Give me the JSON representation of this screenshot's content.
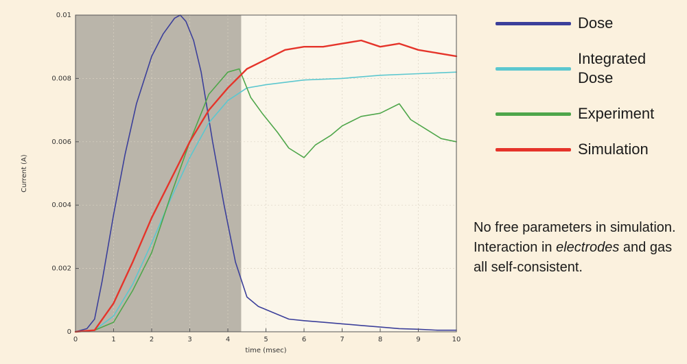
{
  "chart_data": {
    "type": "line",
    "title": "",
    "xlabel": "time (msec)",
    "ylabel": "Current (A)",
    "xlim": [
      0,
      10
    ],
    "ylim": [
      0,
      0.01
    ],
    "xticks": [
      "0",
      "1",
      "2",
      "3",
      "4",
      "5",
      "6",
      "7",
      "8",
      "9",
      "10"
    ],
    "yticks": [
      "0",
      "0.002",
      "0.004",
      "0.006",
      "0.008",
      "0.01"
    ],
    "shaded_region": [
      0,
      4.35
    ],
    "grid": true,
    "legend_placement": "right",
    "series": [
      {
        "name": "Dose",
        "color": "#3b3f9a",
        "x": [
          0,
          0.3,
          0.5,
          0.7,
          1.0,
          1.3,
          1.6,
          2.0,
          2.3,
          2.6,
          2.75,
          2.9,
          3.1,
          3.3,
          3.6,
          3.9,
          4.2,
          4.5,
          4.8,
          5.2,
          5.6,
          6.0,
          6.5,
          7.0,
          7.5,
          8.0,
          8.5,
          9.0,
          9.5,
          10.0
        ],
        "values": [
          0,
          0.0001,
          0.0004,
          0.0016,
          0.0037,
          0.0056,
          0.0072,
          0.0087,
          0.0094,
          0.0099,
          0.01,
          0.0098,
          0.0092,
          0.0082,
          0.006,
          0.004,
          0.0022,
          0.0011,
          0.0008,
          0.0006,
          0.0004,
          0.00035,
          0.0003,
          0.00025,
          0.0002,
          0.00015,
          0.0001,
          8e-05,
          5e-05,
          5e-05
        ]
      },
      {
        "name": "Integrated Dose",
        "color": "#5bc7cf",
        "x": [
          0,
          0.5,
          1.0,
          1.5,
          2.0,
          2.5,
          3.0,
          3.5,
          4.0,
          4.5,
          5.0,
          6.0,
          7.0,
          8.0,
          9.0,
          10.0
        ],
        "values": [
          0,
          5e-05,
          0.0005,
          0.0015,
          0.0028,
          0.0042,
          0.0055,
          0.0066,
          0.0073,
          0.0077,
          0.0078,
          0.00795,
          0.008,
          0.0081,
          0.00815,
          0.0082
        ]
      },
      {
        "name": "Experiment",
        "color": "#4ea64a",
        "x": [
          0,
          0.5,
          1.0,
          1.5,
          2.0,
          2.5,
          3.0,
          3.5,
          4.0,
          4.3,
          4.6,
          4.9,
          5.3,
          5.6,
          6.0,
          6.3,
          6.7,
          7.0,
          7.5,
          8.0,
          8.5,
          8.8,
          9.2,
          9.6,
          10.0
        ],
        "values": [
          0,
          5e-05,
          0.0003,
          0.0013,
          0.0025,
          0.0043,
          0.006,
          0.0075,
          0.0082,
          0.0083,
          0.0074,
          0.0069,
          0.0063,
          0.0058,
          0.0055,
          0.0059,
          0.0062,
          0.0065,
          0.0068,
          0.0069,
          0.0072,
          0.0067,
          0.0064,
          0.0061,
          0.006
        ]
      },
      {
        "name": "Simulation",
        "color": "#e5342a",
        "x": [
          0,
          0.5,
          1.0,
          1.5,
          2.0,
          2.5,
          3.0,
          3.5,
          4.0,
          4.5,
          5.0,
          5.5,
          6.0,
          6.5,
          7.0,
          7.5,
          8.0,
          8.5,
          9.0,
          9.5,
          10.0
        ],
        "values": [
          0,
          5e-05,
          0.0009,
          0.0022,
          0.0036,
          0.0048,
          0.006,
          0.007,
          0.0077,
          0.0083,
          0.0086,
          0.0089,
          0.009,
          0.009,
          0.0091,
          0.0092,
          0.009,
          0.0091,
          0.0089,
          0.0088,
          0.0087
        ]
      }
    ]
  },
  "legend": [
    {
      "label": "Dose",
      "color": "#3b3f9a"
    },
    {
      "label": "Integrated Dose",
      "color": "#5bc7cf"
    },
    {
      "label": "Experiment",
      "color": "#4ea64a"
    },
    {
      "label": "Simulation",
      "color": "#e5342a"
    }
  ],
  "note": {
    "part1": "No free parameters in simulation. Interaction in ",
    "emph": "electrodes",
    "part2": " and gas all self-consistent."
  }
}
